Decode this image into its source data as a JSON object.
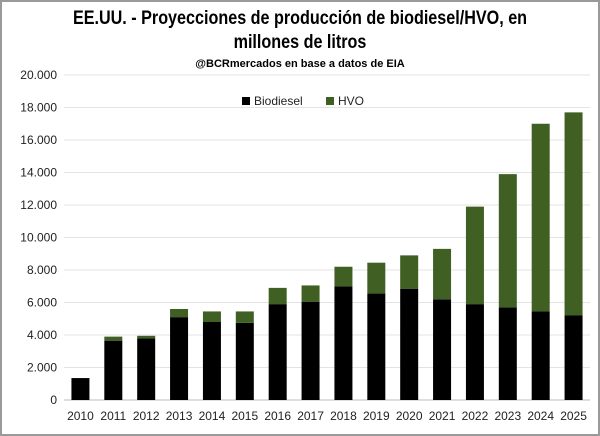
{
  "chart_data": {
    "type": "bar",
    "stacked": true,
    "title_line1": "EE.UU. - Proyecciones de producción de biodiesel/HVO, en",
    "title_line2": "millones de litros",
    "subtitle": "@BCRmercados en base a datos de EIA",
    "categories": [
      "2010",
      "2011",
      "2012",
      "2013",
      "2014",
      "2015",
      "2016",
      "2017",
      "2018",
      "2019",
      "2020",
      "2021",
      "2022",
      "2023",
      "2024",
      "2025"
    ],
    "series": [
      {
        "name": "Biodiesel",
        "color": "#000000",
        "values": [
          1350,
          3650,
          3800,
          5100,
          4800,
          4750,
          5900,
          6050,
          7000,
          6550,
          6850,
          6200,
          5900,
          5700,
          5450,
          5200
        ]
      },
      {
        "name": "HVO",
        "color": "#3f5f23",
        "values": [
          0,
          250,
          150,
          500,
          650,
          700,
          1000,
          1000,
          1200,
          1900,
          2050,
          3100,
          6000,
          8200,
          11550,
          12500
        ]
      }
    ],
    "ylim": [
      0,
      20000
    ],
    "yticks": [
      "0",
      "2.000",
      "4.000",
      "6.000",
      "8.000",
      "10.000",
      "12.000",
      "14.000",
      "16.000",
      "18.000",
      "20.000"
    ],
    "grid": true,
    "legend_position": "top-center"
  }
}
